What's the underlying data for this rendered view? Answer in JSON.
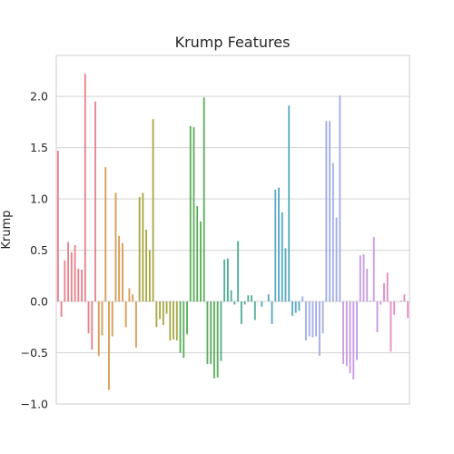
{
  "chart_data": {
    "type": "bar",
    "title": "Krump Features",
    "xlabel": "",
    "ylabel": "Krump",
    "ylim": [
      -1.0,
      2.4
    ],
    "yticks": [
      -1.0,
      -0.5,
      0.0,
      0.5,
      1.0,
      1.5,
      2.0
    ],
    "ytick_labels": [
      "−1.0",
      "−0.5",
      "0.0",
      "0.5",
      "1.0",
      "1.5",
      "2.0"
    ],
    "grid": true,
    "legend": "none",
    "series": [
      {
        "values": [
          1.47,
          -0.15,
          0.4,
          0.58,
          0.48,
          0.55,
          0.32,
          0.31,
          2.22,
          -0.31,
          -0.47,
          1.95,
          -0.53,
          -0.33,
          1.31,
          -0.86,
          -0.34,
          1.06,
          0.64,
          0.57,
          -0.25,
          0.13,
          0.07,
          -0.45,
          1.02,
          1.06,
          0.7,
          0.5,
          1.78,
          -0.25,
          -0.17,
          -0.23,
          -0.12,
          -0.38,
          -0.37,
          -0.38,
          -0.5,
          -0.55,
          -0.32,
          1.71,
          1.7,
          0.93,
          0.78,
          1.99,
          -0.61,
          -0.61,
          -0.75,
          -0.74,
          -0.58,
          0.41,
          0.42,
          0.11,
          -0.03,
          0.59,
          -0.22,
          -0.03,
          0.06,
          0.06,
          -0.18,
          0.0,
          -0.05,
          0.0,
          0.07,
          -0.22,
          1.09,
          1.11,
          0.87,
          0.52,
          1.91,
          -0.14,
          -0.11,
          -0.09,
          0.05,
          -0.38,
          -0.34,
          -0.35,
          -0.34,
          -0.53,
          -0.31,
          1.76,
          1.76,
          1.35,
          0.82,
          2.01,
          -0.61,
          -0.63,
          -0.7,
          -0.76,
          -0.57,
          0.45,
          0.46,
          0.32,
          0.01,
          0.63,
          -0.3,
          -0.03,
          0.18,
          0.28,
          -0.49,
          -0.13,
          0.0,
          0.01,
          0.07,
          -0.16
        ]
      }
    ],
    "group_colors": [
      "#e8828c",
      "#d99c58",
      "#a8a848",
      "#5fae5f",
      "#55ad97",
      "#5aa9c3",
      "#a3aee7",
      "#c79be6",
      "#e58cc9"
    ]
  }
}
